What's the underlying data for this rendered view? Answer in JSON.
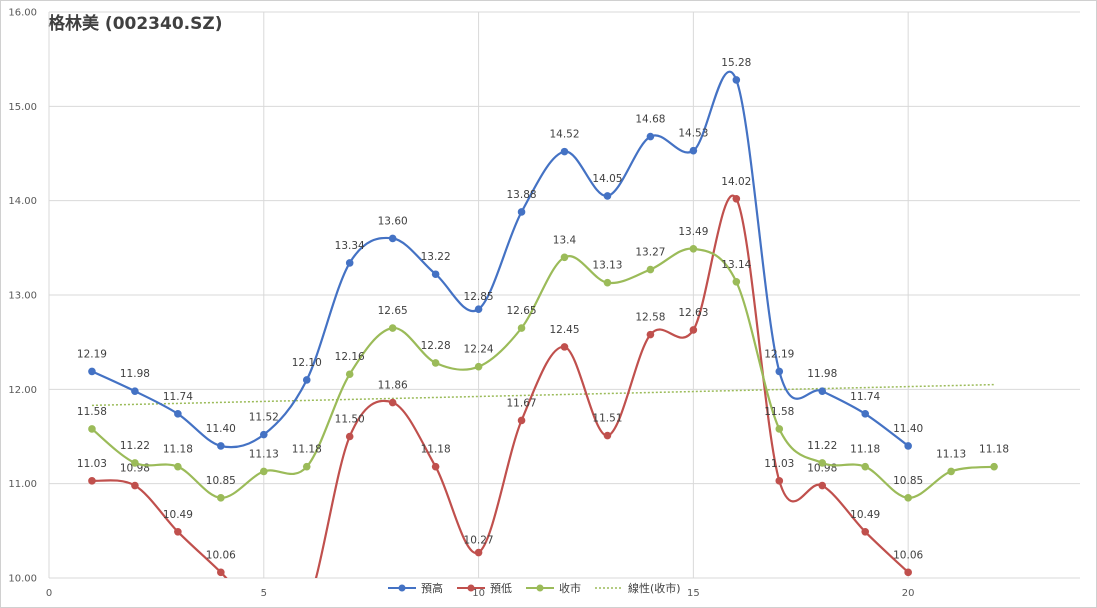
{
  "chart_data": {
    "type": "line",
    "title": "格林美 (002340.SZ)",
    "xlabel": "",
    "ylabel": "",
    "xlim": [
      0,
      24
    ],
    "ylim": [
      10.0,
      16.0
    ],
    "x_ticks": [
      0,
      5,
      10,
      15,
      20
    ],
    "y_ticks": [
      10.0,
      11.0,
      12.0,
      13.0,
      14.0,
      15.0,
      16.0
    ],
    "y_tick_labels": [
      "10.00",
      "11.00",
      "12.00",
      "13.00",
      "14.00",
      "15.00",
      "16.00"
    ],
    "grid": true,
    "legend_position": "bottom",
    "series": [
      {
        "name": "預高",
        "color": "#4472C4",
        "x": [
          1,
          2,
          3,
          4,
          5,
          6,
          7,
          8,
          9,
          10,
          11,
          12,
          13,
          14,
          15,
          16,
          17,
          18,
          19,
          20
        ],
        "values": [
          12.19,
          11.98,
          11.74,
          11.4,
          11.52,
          12.1,
          13.34,
          13.6,
          13.22,
          12.85,
          13.88,
          14.52,
          14.05,
          14.68,
          14.53,
          15.28,
          12.19,
          11.98,
          11.74,
          11.4
        ],
        "labels": [
          "12.19",
          "11.98",
          "11.74",
          "11.40",
          "11.52",
          "12.10",
          "13.34",
          "13.60",
          "13.22",
          "12.85",
          "13.88",
          "14.52",
          "14.05",
          "14.68",
          "14.53",
          "15.28",
          "12.19",
          "11.98",
          "11.74",
          "11.40"
        ]
      },
      {
        "name": "預低",
        "color": "#C0504D",
        "x": [
          1,
          2,
          3,
          4,
          5,
          6,
          7,
          8,
          9,
          10,
          11,
          12,
          13,
          14,
          15,
          16,
          17,
          18,
          19,
          20
        ],
        "values": [
          11.03,
          10.98,
          10.49,
          10.06,
          9.6,
          9.7,
          11.5,
          11.86,
          11.18,
          10.27,
          11.67,
          12.45,
          11.51,
          12.58,
          12.63,
          14.02,
          11.03,
          10.98,
          10.49,
          10.06
        ],
        "labels": [
          "11.03",
          "10.98",
          "10.49",
          "10.06",
          "",
          "",
          "11.50",
          "11.86",
          "11.18",
          "10.27",
          "11.67",
          "12.45",
          "11.51",
          "12.58",
          "12.63",
          "14.02",
          "11.03",
          "10.98",
          "10.49",
          "10.06"
        ]
      },
      {
        "name": "收市",
        "color": "#9BBB59",
        "x": [
          1,
          2,
          3,
          4,
          5,
          6,
          7,
          8,
          9,
          10,
          11,
          12,
          13,
          14,
          15,
          16,
          17,
          18,
          19,
          20,
          21,
          22
        ],
        "values": [
          11.58,
          11.22,
          11.18,
          10.85,
          11.13,
          11.18,
          12.16,
          12.65,
          12.28,
          12.24,
          12.65,
          13.4,
          13.13,
          13.27,
          13.49,
          13.14,
          11.58,
          11.22,
          11.18,
          10.85,
          11.13,
          11.18
        ],
        "labels": [
          "11.58",
          "11.22",
          "11.18",
          "10.85",
          "11.13",
          "11.18",
          "12.16",
          "12.65",
          "12.28",
          "12.24",
          "12.65",
          "13.4",
          "13.13",
          "13.27",
          "13.49",
          "13.14",
          "11.58",
          "11.22",
          "11.18",
          "10.85",
          "11.13",
          "11.18"
        ]
      }
    ],
    "trendline": {
      "name": "線性(收市)",
      "color": "#9BBB59",
      "x": [
        1,
        22
      ],
      "values": [
        11.83,
        12.05
      ]
    }
  }
}
